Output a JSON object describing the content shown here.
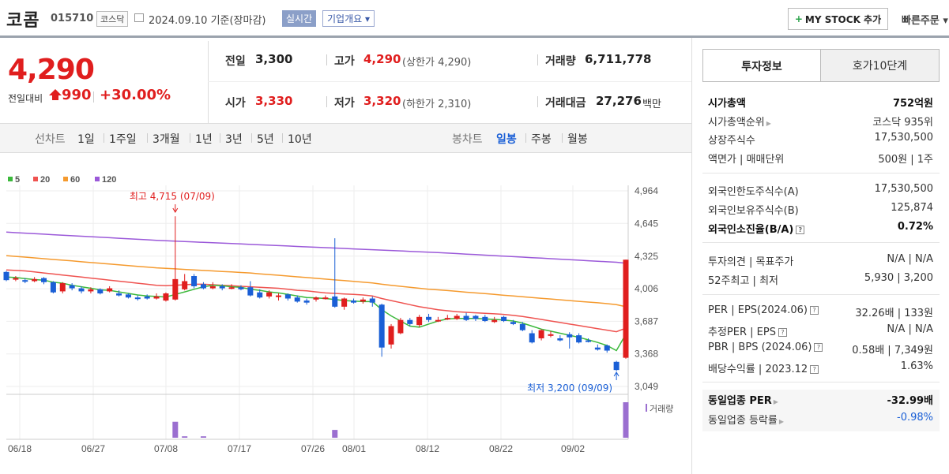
{
  "header": {
    "company_name": "코콤",
    "stock_code": "015710",
    "market": "코스닥",
    "date_text": "2024.09.10  기준(장마감)",
    "realtime_label": "실시간",
    "company_info_label": "기업개요 ▾",
    "mystock_label": "MY STOCK 추가",
    "quick_order_label": "빠른주문 ▾"
  },
  "price": {
    "current": "4,290",
    "change_label": "전일대비",
    "change_amount": "990",
    "change_percent": "+30.00%"
  },
  "summary": {
    "prev_close_label": "전일",
    "prev_close": "3,300",
    "high_label": "고가",
    "high": "4,290",
    "upper_limit": "(상한가 4,290)",
    "volume_label": "거래량",
    "volume": "6,711,778",
    "open_label": "시가",
    "open": "3,330",
    "low_label": "저가",
    "low": "3,320",
    "lower_limit": "(하한가 2,310)",
    "value_label": "거래대금",
    "value": "27,276",
    "value_unit": "백만"
  },
  "period_bar": {
    "line_label": "선차트",
    "line_periods": [
      "1일",
      "1주일",
      "3개월",
      "1년",
      "3년",
      "5년",
      "10년"
    ],
    "candle_label": "봉차트",
    "candle_periods": [
      "일봉",
      "주봉",
      "월봉"
    ],
    "candle_selected": "일봉"
  },
  "chart_data": {
    "type": "candlestick",
    "legend": [
      "5",
      "20",
      "60",
      "120"
    ],
    "legend_colors": [
      "#3cb93c",
      "#ef5350",
      "#f59a2e",
      "#9b59d9"
    ],
    "y_ticks": [
      "4,964",
      "4,645",
      "4,325",
      "4,006",
      "3,687",
      "3,368",
      "3,049"
    ],
    "ylim": [
      3049,
      4964
    ],
    "x_ticks": [
      "06/18",
      "06/27",
      "07/08",
      "07/17",
      "07/26",
      "08/01",
      "08/12",
      "08/22",
      "09/02"
    ],
    "max_annotation": "최고 4,715 (07/09)",
    "min_annotation": "최저 3,200 (09/09)",
    "volume_label": "거래량",
    "candles": [
      {
        "o": 4170,
        "c": 4090,
        "h": 4180,
        "l": 4080
      },
      {
        "o": 4100,
        "c": 4110,
        "h": 4130,
        "l": 4080
      },
      {
        "o": 4090,
        "c": 4080,
        "h": 4110,
        "l": 4060
      },
      {
        "o": 4080,
        "c": 4100,
        "h": 4120,
        "l": 4070
      },
      {
        "o": 4110,
        "c": 4070,
        "h": 4120,
        "l": 4050
      },
      {
        "o": 4070,
        "c": 3970,
        "h": 4080,
        "l": 3960
      },
      {
        "o": 3980,
        "c": 4060,
        "h": 4070,
        "l": 3960
      },
      {
        "o": 4040,
        "c": 4010,
        "h": 4060,
        "l": 3990
      },
      {
        "o": 4010,
        "c": 3980,
        "h": 4030,
        "l": 3960
      },
      {
        "o": 3980,
        "c": 4000,
        "h": 4020,
        "l": 3960
      },
      {
        "o": 4000,
        "c": 3960,
        "h": 4010,
        "l": 3950
      },
      {
        "o": 3980,
        "c": 4010,
        "h": 4030,
        "l": 3970
      },
      {
        "o": 3960,
        "c": 3940,
        "h": 3990,
        "l": 3930
      },
      {
        "o": 3950,
        "c": 3920,
        "h": 3960,
        "l": 3910
      },
      {
        "o": 3920,
        "c": 3910,
        "h": 3940,
        "l": 3890
      },
      {
        "o": 3930,
        "c": 3910,
        "h": 3950,
        "l": 3900
      },
      {
        "o": 3910,
        "c": 3930,
        "h": 3960,
        "l": 3900
      },
      {
        "o": 3890,
        "c": 3960,
        "h": 3970,
        "l": 3880
      },
      {
        "o": 3900,
        "c": 4100,
        "h": 4715,
        "l": 3890
      },
      {
        "o": 4000,
        "c": 4080,
        "h": 4150,
        "l": 3990
      },
      {
        "o": 4130,
        "c": 4030,
        "h": 4150,
        "l": 4010
      },
      {
        "o": 4050,
        "c": 4010,
        "h": 4070,
        "l": 4000
      },
      {
        "o": 4010,
        "c": 4030,
        "h": 4070,
        "l": 4000
      },
      {
        "o": 4030,
        "c": 4010,
        "h": 4050,
        "l": 3990
      },
      {
        "o": 4020,
        "c": 4020,
        "h": 4050,
        "l": 4000
      },
      {
        "o": 4020,
        "c": 4000,
        "h": 4040,
        "l": 3990
      },
      {
        "o": 4020,
        "c": 3940,
        "h": 4080,
        "l": 3930
      },
      {
        "o": 3970,
        "c": 3920,
        "h": 4000,
        "l": 3910
      },
      {
        "o": 3930,
        "c": 3970,
        "h": 3990,
        "l": 3910
      },
      {
        "o": 3940,
        "c": 3940,
        "h": 3960,
        "l": 3890
      },
      {
        "o": 3950,
        "c": 3910,
        "h": 3960,
        "l": 3890
      },
      {
        "o": 3920,
        "c": 3880,
        "h": 3940,
        "l": 3870
      },
      {
        "o": 3890,
        "c": 3870,
        "h": 3910,
        "l": 3850
      },
      {
        "o": 3900,
        "c": 3920,
        "h": 3930,
        "l": 3880
      },
      {
        "o": 3920,
        "c": 3920,
        "h": 3940,
        "l": 3900
      },
      {
        "o": 3930,
        "c": 3830,
        "h": 4500,
        "l": 3820
      },
      {
        "o": 3830,
        "c": 3910,
        "h": 3920,
        "l": 3800
      },
      {
        "o": 3890,
        "c": 3870,
        "h": 3910,
        "l": 3860
      },
      {
        "o": 3880,
        "c": 3900,
        "h": 3920,
        "l": 3860
      },
      {
        "o": 3910,
        "c": 3870,
        "h": 3930,
        "l": 3830
      },
      {
        "o": 3850,
        "c": 3430,
        "h": 3860,
        "l": 3340
      },
      {
        "o": 3460,
        "c": 3640,
        "h": 3660,
        "l": 3420
      },
      {
        "o": 3570,
        "c": 3700,
        "h": 3720,
        "l": 3560
      },
      {
        "o": 3700,
        "c": 3660,
        "h": 3720,
        "l": 3640
      },
      {
        "o": 3650,
        "c": 3730,
        "h": 3750,
        "l": 3630
      },
      {
        "o": 3730,
        "c": 3700,
        "h": 3760,
        "l": 3680
      },
      {
        "o": 3690,
        "c": 3700,
        "h": 3730,
        "l": 3680
      },
      {
        "o": 3720,
        "c": 3720,
        "h": 3750,
        "l": 3700
      },
      {
        "o": 3710,
        "c": 3740,
        "h": 3760,
        "l": 3700
      },
      {
        "o": 3740,
        "c": 3700,
        "h": 3770,
        "l": 3690
      },
      {
        "o": 3740,
        "c": 3710,
        "h": 3750,
        "l": 3690
      },
      {
        "o": 3730,
        "c": 3690,
        "h": 3750,
        "l": 3680
      },
      {
        "o": 3680,
        "c": 3700,
        "h": 3730,
        "l": 3670
      },
      {
        "o": 3730,
        "c": 3690,
        "h": 3740,
        "l": 3680
      },
      {
        "o": 3680,
        "c": 3660,
        "h": 3700,
        "l": 3650
      },
      {
        "o": 3660,
        "c": 3600,
        "h": 3680,
        "l": 3590
      },
      {
        "o": 3570,
        "c": 3480,
        "h": 3600,
        "l": 3470
      },
      {
        "o": 3520,
        "c": 3600,
        "h": 3610,
        "l": 3500
      },
      {
        "o": 3560,
        "c": 3560,
        "h": 3590,
        "l": 3530
      },
      {
        "o": 3520,
        "c": 3500,
        "h": 3550,
        "l": 3490
      },
      {
        "o": 3560,
        "c": 3530,
        "h": 3580,
        "l": 3420
      },
      {
        "o": 3550,
        "c": 3480,
        "h": 3570,
        "l": 3470
      },
      {
        "o": 3500,
        "c": 3490,
        "h": 3520,
        "l": 3480
      },
      {
        "o": 3430,
        "c": 3410,
        "h": 3460,
        "l": 3400
      },
      {
        "o": 3450,
        "c": 3400,
        "h": 3460,
        "l": 3380
      },
      {
        "o": 3290,
        "c": 3210,
        "h": 3300,
        "l": 3200
      },
      {
        "o": 3330,
        "c": 4290,
        "h": 4290,
        "l": 3320
      }
    ],
    "ma5": [
      4120,
      4115,
      4105,
      4095,
      4090,
      4070,
      4060,
      4040,
      4025,
      4010,
      3995,
      3990,
      3975,
      3960,
      3945,
      3935,
      3930,
      3925,
      3950,
      3975,
      4000,
      4025,
      4040,
      4035,
      4025,
      4020,
      4000,
      3990,
      3975,
      3965,
      3950,
      3935,
      3920,
      3915,
      3910,
      3900,
      3890,
      3885,
      3880,
      3880,
      3800,
      3740,
      3690,
      3640,
      3630,
      3660,
      3690,
      3710,
      3715,
      3715,
      3715,
      3710,
      3705,
      3700,
      3690,
      3670,
      3640,
      3610,
      3590,
      3570,
      3550,
      3530,
      3505,
      3480,
      3450,
      3400,
      3560
    ],
    "ma20": [
      4190,
      4185,
      4180,
      4170,
      4160,
      4150,
      4140,
      4130,
      4120,
      4110,
      4100,
      4090,
      4080,
      4070,
      4060,
      4050,
      4040,
      4035,
      4040,
      4045,
      4050,
      4050,
      4045,
      4040,
      4035,
      4030,
      4025,
      4020,
      4015,
      4010,
      4000,
      3990,
      3985,
      3975,
      3965,
      3960,
      3955,
      3950,
      3945,
      3935,
      3910,
      3890,
      3870,
      3850,
      3830,
      3815,
      3800,
      3790,
      3780,
      3775,
      3770,
      3765,
      3760,
      3755,
      3745,
      3735,
      3720,
      3705,
      3690,
      3675,
      3660,
      3645,
      3630,
      3615,
      3600,
      3585,
      3620
    ],
    "ma60": [
      4330,
      4322,
      4315,
      4308,
      4300,
      4292,
      4285,
      4278,
      4270,
      4262,
      4255,
      4248,
      4240,
      4232,
      4225,
      4218,
      4210,
      4205,
      4200,
      4195,
      4190,
      4185,
      4180,
      4175,
      4170,
      4165,
      4160,
      4152,
      4145,
      4138,
      4130,
      4122,
      4115,
      4108,
      4100,
      4092,
      4085,
      4078,
      4070,
      4062,
      4050,
      4040,
      4030,
      4020,
      4010,
      4000,
      3995,
      3988,
      3980,
      3972,
      3965,
      3958,
      3950,
      3942,
      3935,
      3928,
      3920,
      3912,
      3905,
      3898,
      3890,
      3882,
      3875,
      3868,
      3860,
      3850,
      3830
    ],
    "ma120": [
      4560,
      4555,
      4550,
      4545,
      4540,
      4535,
      4530,
      4525,
      4520,
      4515,
      4510,
      4505,
      4500,
      4495,
      4490,
      4485,
      4480,
      4476,
      4472,
      4468,
      4464,
      4460,
      4456,
      4452,
      4448,
      4444,
      4440,
      4436,
      4432,
      4428,
      4424,
      4420,
      4416,
      4412,
      4408,
      4404,
      4400,
      4396,
      4392,
      4388,
      4384,
      4380,
      4376,
      4372,
      4368,
      4364,
      4360,
      4355,
      4350,
      4345,
      4340,
      4335,
      4330,
      4325,
      4320,
      4315,
      4310,
      4305,
      4300,
      4295,
      4290,
      4285,
      4280,
      4275,
      4270,
      4265,
      4255
    ],
    "volumes": [
      {
        "i": 18,
        "v": 0.45
      },
      {
        "i": 19,
        "v": 0.04
      },
      {
        "i": 21,
        "v": 0.04
      },
      {
        "i": 35,
        "v": 0.22
      },
      {
        "i": 66,
        "v": 1.0
      }
    ]
  },
  "sidebar": {
    "tab_active": "투자정보",
    "tab_other": "호가10단계",
    "rows": [
      {
        "l": "시가총액",
        "r": "752억원",
        "bold": true
      },
      {
        "l": "시가총액순위",
        "r": "코스닥 935위",
        "tri": true
      },
      {
        "l": "상장주식수",
        "r": "17,530,500"
      },
      {
        "l": "액면가 | 매매단위",
        "r": "500원 | 1주"
      },
      {
        "l": "외국인한도주식수(A)",
        "r": "17,530,500"
      },
      {
        "l": "외국인보유주식수(B)",
        "r": "125,874"
      },
      {
        "l": "외국인소진율(B/A)",
        "r": "0.72%",
        "bold": true,
        "qm": true
      },
      {
        "l": "투자의견 | 목표주가",
        "r": "N/A | N/A"
      },
      {
        "l": "52주최고 | 최저",
        "r": "5,930 | 3,200"
      },
      {
        "l": "PER | EPS(2024.06)",
        "r": "32.26배 | 133원",
        "qm": true
      },
      {
        "l": "추정PER | EPS",
        "r": "N/A | N/A",
        "qm": true
      },
      {
        "l": "PBR | BPS (2024.06)",
        "r": "0.58배 | 7,349원",
        "qm": true
      },
      {
        "l": "배당수익률 | 2023.12",
        "r": "1.63%",
        "qm": true
      },
      {
        "l": "동일업종 PER",
        "r": "-32.99배",
        "bold": true,
        "tri": true
      },
      {
        "l": "동일업종 등락률",
        "r": "-0.98%",
        "tri": true,
        "blue": true
      }
    ]
  }
}
